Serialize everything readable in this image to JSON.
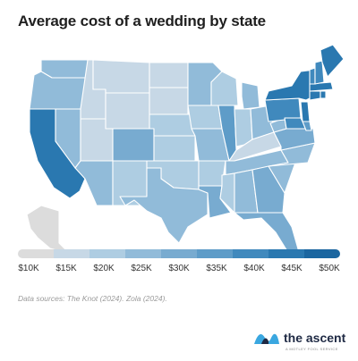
{
  "title": "Average cost of a wedding by state",
  "legend": {
    "labels": [
      "$10K",
      "$15K",
      "$20K",
      "$25K",
      "$30K",
      "$35K",
      "$40K",
      "$45K",
      "$50K"
    ],
    "colors": [
      "#dcdcdc",
      "#c7d8e6",
      "#aecde2",
      "#91bbd9",
      "#78abd0",
      "#5e9cc8",
      "#4089bd",
      "#2a78b0",
      "#1b66a0"
    ]
  },
  "source": "Data sources: The Knot (2024). Zola (2024).",
  "logo": {
    "name": "the ascent",
    "tagline": "A MOTLEY FOOL SERVICE",
    "colors": [
      "#3aa7e0",
      "#1f2a44"
    ]
  },
  "map_data": {
    "type": "choropleth",
    "region": "United States",
    "note": "Alaska shown gray (no data)",
    "states": [
      {
        "code": "WA",
        "bin": 3
      },
      {
        "code": "OR",
        "bin": 3
      },
      {
        "code": "CA",
        "bin": 7
      },
      {
        "code": "NV",
        "bin": 3
      },
      {
        "code": "ID",
        "bin": 1
      },
      {
        "code": "MT",
        "bin": 1
      },
      {
        "code": "WY",
        "bin": 1
      },
      {
        "code": "UT",
        "bin": 1
      },
      {
        "code": "AZ",
        "bin": 3
      },
      {
        "code": "CO",
        "bin": 4
      },
      {
        "code": "NM",
        "bin": 2
      },
      {
        "code": "ND",
        "bin": 1
      },
      {
        "code": "SD",
        "bin": 1
      },
      {
        "code": "NE",
        "bin": 2
      },
      {
        "code": "KS",
        "bin": 2
      },
      {
        "code": "OK",
        "bin": 2
      },
      {
        "code": "TX",
        "bin": 3
      },
      {
        "code": "MN",
        "bin": 3
      },
      {
        "code": "IA",
        "bin": 2
      },
      {
        "code": "MO",
        "bin": 3
      },
      {
        "code": "AR",
        "bin": 2
      },
      {
        "code": "LA",
        "bin": 4
      },
      {
        "code": "WI",
        "bin": 2
      },
      {
        "code": "IL",
        "bin": 5
      },
      {
        "code": "MI",
        "bin": 3
      },
      {
        "code": "IN",
        "bin": 2
      },
      {
        "code": "OH",
        "bin": 3
      },
      {
        "code": "KY",
        "bin": 1
      },
      {
        "code": "TN",
        "bin": 3
      },
      {
        "code": "MS",
        "bin": 2
      },
      {
        "code": "AL",
        "bin": 3
      },
      {
        "code": "GA",
        "bin": 4
      },
      {
        "code": "FL",
        "bin": 4
      },
      {
        "code": "SC",
        "bin": 3
      },
      {
        "code": "NC",
        "bin": 3
      },
      {
        "code": "VA",
        "bin": 4
      },
      {
        "code": "WV",
        "bin": 3
      },
      {
        "code": "PA",
        "bin": 6
      },
      {
        "code": "NY",
        "bin": 7
      },
      {
        "code": "NJ",
        "bin": 7
      },
      {
        "code": "MD",
        "bin": 6
      },
      {
        "code": "DE",
        "bin": 5
      },
      {
        "code": "CT",
        "bin": 7
      },
      {
        "code": "RI",
        "bin": 7
      },
      {
        "code": "MA",
        "bin": 7
      },
      {
        "code": "VT",
        "bin": 6
      },
      {
        "code": "NH",
        "bin": 6
      },
      {
        "code": "ME",
        "bin": 7
      },
      {
        "code": "AK",
        "bin": 0
      },
      {
        "code": "HI",
        "bin": 0
      }
    ]
  }
}
